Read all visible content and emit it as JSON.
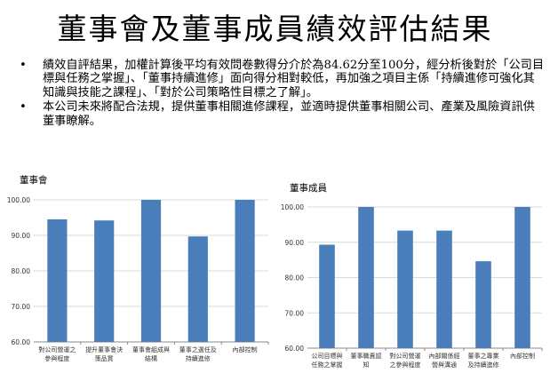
{
  "page": {
    "title": "董事會及董事成員績效評估結果",
    "bullets": [
      "績效自評結果，加權計算後平均有效問卷數得分介於為84.62分至100分，經分析後對於「公司目標與任務之掌握」、「董事持續進修」面向得分相對較低，再加強之項目主係「持續進修可強化其知識與技能之課程」、「對於公司策略性目標之了解」。",
      "本公司未來將配合法規，提供董事相關進修課程，並適時提供董事相關公司、產業及風險資訊供董事瞭解。"
    ],
    "bullet_symbol": "•"
  },
  "chart_data": [
    {
      "type": "bar",
      "title": "董事會",
      "categories": [
        [
          "對公司營運之",
          "參與程度"
        ],
        [
          "提升董事會決",
          "策品質"
        ],
        [
          "董事會組成與",
          "結構"
        ],
        [
          "董事之選任及",
          "持續進修"
        ],
        [
          "內部控制"
        ]
      ],
      "values": [
        94.5,
        94.2,
        100.0,
        89.7,
        100.0
      ],
      "ylim": [
        60,
        100
      ],
      "yticks": [
        "60.00",
        "70.00",
        "80.00",
        "90.00",
        "100.00"
      ],
      "bar_color": "#4a7ebb",
      "grid": true
    },
    {
      "type": "bar",
      "title": "董事成員",
      "categories": [
        [
          "公司目標與",
          "任務之掌握"
        ],
        [
          "董事職責認",
          "知"
        ],
        [
          "對公司營運",
          "之參與程度"
        ],
        [
          "內部關係經",
          "營與溝通"
        ],
        [
          "董事之專業",
          "及持續進修"
        ],
        [
          "內部控制"
        ]
      ],
      "values": [
        89.3,
        100.0,
        93.3,
        93.3,
        84.62,
        100.0
      ],
      "ylim": [
        60,
        100
      ],
      "yticks": [
        "60.00",
        "70.00",
        "80.00",
        "90.00",
        "100.00"
      ],
      "bar_color": "#4a7ebb",
      "grid": true
    }
  ]
}
